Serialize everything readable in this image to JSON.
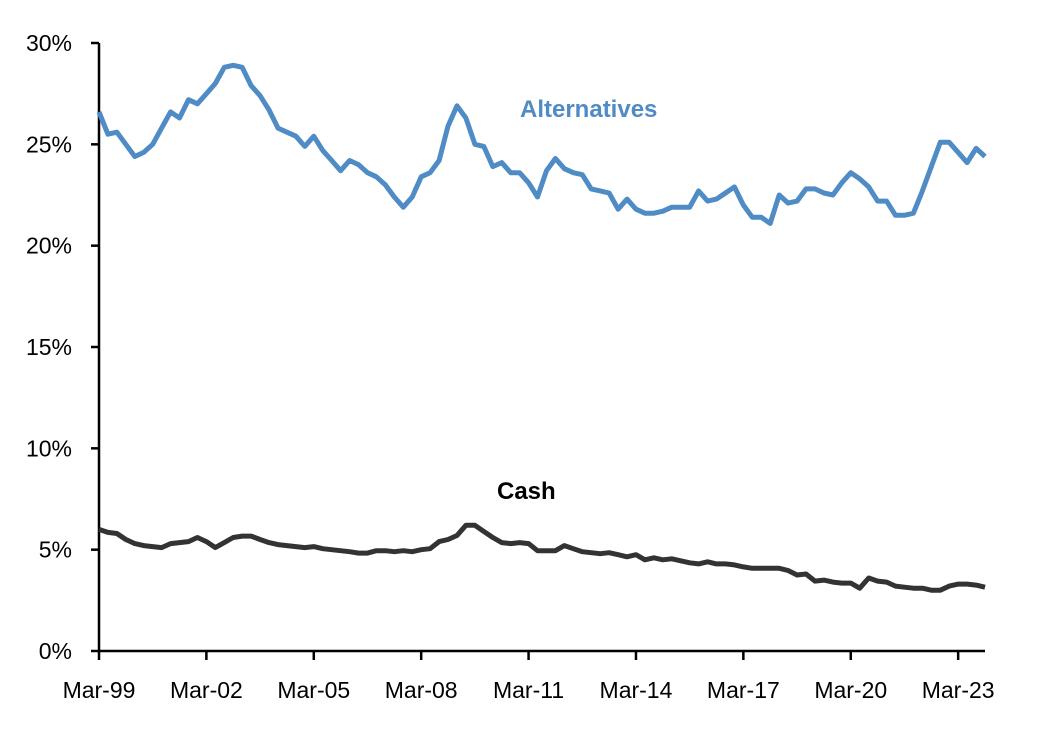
{
  "chart_data": {
    "type": "line",
    "title": "",
    "xlabel": "",
    "ylabel": "",
    "ylim": [
      0,
      30
    ],
    "y_ticks": [
      "0%",
      "5%",
      "10%",
      "15%",
      "20%",
      "25%",
      "30%"
    ],
    "x_tick_labels": [
      "Mar-99",
      "Mar-02",
      "Mar-05",
      "Mar-08",
      "Mar-11",
      "Mar-14",
      "Mar-17",
      "Mar-20",
      "Mar-23"
    ],
    "grid": false,
    "legend": "none (series labelled directly on chart)",
    "x": [
      "Mar-99",
      "Jun-99",
      "Sep-99",
      "Dec-99",
      "Mar-00",
      "Jun-00",
      "Sep-00",
      "Dec-00",
      "Mar-01",
      "Jun-01",
      "Sep-01",
      "Dec-01",
      "Mar-02",
      "Jun-02",
      "Sep-02",
      "Dec-02",
      "Mar-03",
      "Jun-03",
      "Sep-03",
      "Dec-03",
      "Mar-04",
      "Jun-04",
      "Sep-04",
      "Dec-04",
      "Mar-05",
      "Jun-05",
      "Sep-05",
      "Dec-05",
      "Mar-06",
      "Jun-06",
      "Sep-06",
      "Dec-06",
      "Mar-07",
      "Jun-07",
      "Sep-07",
      "Dec-07",
      "Mar-08",
      "Jun-08",
      "Sep-08",
      "Dec-08",
      "Mar-09",
      "Jun-09",
      "Sep-09",
      "Dec-09",
      "Mar-10",
      "Jun-10",
      "Sep-10",
      "Dec-10",
      "Mar-11",
      "Jun-11",
      "Sep-11",
      "Dec-11",
      "Mar-12",
      "Jun-12",
      "Sep-12",
      "Dec-12",
      "Mar-13",
      "Jun-13",
      "Sep-13",
      "Dec-13",
      "Mar-14",
      "Jun-14",
      "Sep-14",
      "Dec-14",
      "Mar-15",
      "Jun-15",
      "Sep-15",
      "Dec-15",
      "Mar-16",
      "Jun-16",
      "Sep-16",
      "Dec-16",
      "Mar-17",
      "Jun-17",
      "Sep-17",
      "Dec-17",
      "Mar-18",
      "Jun-18",
      "Sep-18",
      "Dec-18",
      "Mar-19",
      "Jun-19",
      "Sep-19",
      "Dec-19",
      "Mar-20",
      "Jun-20",
      "Sep-20",
      "Dec-20",
      "Mar-21",
      "Jun-21",
      "Sep-21",
      "Dec-21",
      "Mar-22",
      "Jun-22",
      "Sep-22",
      "Dec-22",
      "Mar-23",
      "Jun-23",
      "Sep-23",
      "Dec-23"
    ],
    "series": [
      {
        "name": "Alternatives",
        "color": "#4F8BC4",
        "values": [
          26.6,
          25.5,
          25.6,
          25.0,
          24.4,
          24.6,
          25.0,
          25.8,
          26.6,
          26.3,
          27.2,
          27.0,
          27.5,
          28.0,
          28.8,
          28.9,
          28.8,
          27.9,
          27.4,
          26.7,
          25.8,
          25.6,
          25.4,
          24.9,
          25.4,
          24.7,
          24.2,
          23.7,
          24.2,
          24.0,
          23.6,
          23.4,
          23.0,
          22.4,
          21.9,
          22.4,
          23.4,
          23.6,
          24.2,
          25.9,
          26.9,
          26.3,
          25.0,
          24.9,
          23.9,
          24.1,
          23.6,
          23.6,
          23.1,
          22.4,
          23.7,
          24.3,
          23.8,
          23.6,
          23.5,
          22.8,
          22.7,
          22.6,
          21.8,
          22.3,
          21.8,
          21.6,
          21.6,
          21.7,
          21.9,
          21.9,
          21.9,
          22.7,
          22.2,
          22.3,
          22.6,
          22.9,
          22.0,
          21.4,
          21.4,
          21.1,
          22.5,
          22.1,
          22.2,
          22.8,
          22.8,
          22.6,
          22.5,
          23.1,
          23.6,
          23.3,
          22.9,
          22.2,
          22.2,
          21.5,
          21.5,
          21.6,
          22.7,
          23.9,
          25.1,
          25.1,
          24.6,
          24.1,
          24.8,
          24.4
        ]
      },
      {
        "name": "Cash",
        "color": "#333333",
        "values": [
          6.0,
          5.85,
          5.8,
          5.5,
          5.3,
          5.2,
          5.15,
          5.1,
          5.3,
          5.35,
          5.4,
          5.6,
          5.4,
          5.1,
          5.35,
          5.6,
          5.67,
          5.67,
          5.5,
          5.35,
          5.25,
          5.2,
          5.15,
          5.1,
          5.15,
          5.05,
          5.0,
          4.95,
          4.9,
          4.83,
          4.83,
          4.95,
          4.95,
          4.9,
          4.95,
          4.9,
          5.0,
          5.05,
          5.4,
          5.5,
          5.7,
          6.2,
          6.2,
          5.9,
          5.6,
          5.35,
          5.3,
          5.35,
          5.3,
          4.95,
          4.95,
          4.95,
          5.2,
          5.05,
          4.9,
          4.85,
          4.8,
          4.85,
          4.75,
          4.65,
          4.75,
          4.5,
          4.6,
          4.5,
          4.55,
          4.45,
          4.35,
          4.3,
          4.4,
          4.3,
          4.3,
          4.25,
          4.15,
          4.08,
          4.08,
          4.08,
          4.08,
          3.97,
          3.75,
          3.8,
          3.45,
          3.5,
          3.4,
          3.35,
          3.35,
          3.1,
          3.6,
          3.45,
          3.4,
          3.2,
          3.15,
          3.1,
          3.1,
          3.0,
          3.0,
          3.2,
          3.3,
          3.3,
          3.25,
          3.15
        ]
      }
    ]
  }
}
